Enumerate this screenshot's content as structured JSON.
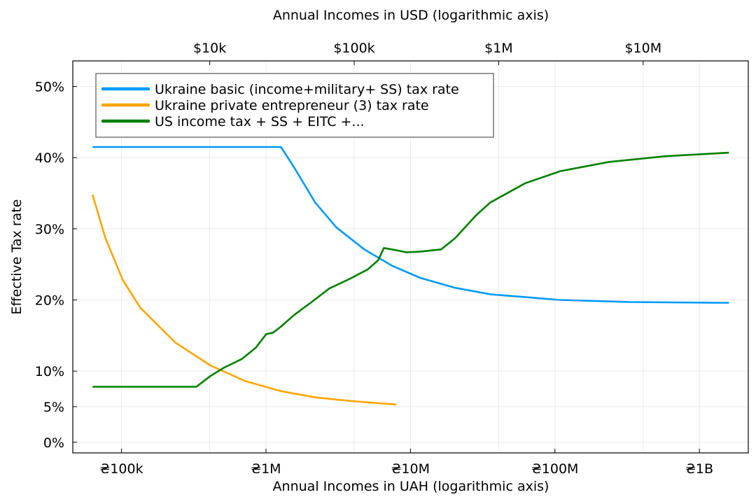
{
  "chart_data": {
    "type": "line",
    "title": "",
    "xlabel": "Annual Incomes in UAH (logarithmic axis)",
    "x2label": "Annual Incomes in USD (logarithmic axis)",
    "ylabel": "Effective Tax rate",
    "xscale": "log",
    "xlim": [
      46000,
      2180000000
    ],
    "ylim": [
      -1.5,
      53.6
    ],
    "grid": true,
    "legend_position": "top-left",
    "x_ticks": [
      {
        "value": 100000,
        "label": "₴100k"
      },
      {
        "value": 1000000,
        "label": "₴1M"
      },
      {
        "value": 10000000,
        "label": "₴10M"
      },
      {
        "value": 100000000,
        "label": "₴100M"
      },
      {
        "value": 1000000000,
        "label": "₴1B"
      }
    ],
    "x2_ticks": [
      {
        "value": 10000,
        "label": "$10k"
      },
      {
        "value": 100000,
        "label": "$100k"
      },
      {
        "value": 1000000,
        "label": "$1M"
      },
      {
        "value": 10000000,
        "label": "$10M"
      }
    ],
    "y_ticks": [
      {
        "value": 0,
        "label": "0%"
      },
      {
        "value": 5,
        "label": "5%"
      },
      {
        "value": 10,
        "label": "10%"
      },
      {
        "value": 20,
        "label": "20%"
      },
      {
        "value": 30,
        "label": "30%"
      },
      {
        "value": 40,
        "label": "40%"
      },
      {
        "value": 50,
        "label": "50%"
      }
    ],
    "series": [
      {
        "name": "Ukraine basic (income+military+ SS) tax rate",
        "color": "#009AFA",
        "x": [
          63000,
          1270000,
          1570000,
          2190000,
          3070000,
          4790000,
          7480000,
          11700000,
          20400000,
          35700000,
          108700000,
          332000000,
          1600000000
        ],
        "y": [
          41.5,
          41.5,
          38.6,
          33.7,
          30.2,
          27.1,
          24.8,
          23.1,
          21.7,
          20.8,
          20.0,
          19.7,
          19.6
        ]
      },
      {
        "name": "Ukraine private entrepreneur (3) tax rate",
        "color": "#FFA500",
        "x": [
          63000,
          77400,
          102000,
          135000,
          236000,
          412000,
          719000,
          1260000,
          2190000,
          3830000,
          8000000
        ],
        "y": [
          34.8,
          28.7,
          22.8,
          18.9,
          14.0,
          10.8,
          8.6,
          7.2,
          6.3,
          5.8,
          5.3
        ]
      },
      {
        "name": "US income tax + SS + EITC +...",
        "color": "#008000",
        "x": [
          63000,
          330000,
          412000,
          515000,
          681000,
          851000,
          1005000,
          1120000,
          1260000,
          1570000,
          2070000,
          2740000,
          3830000,
          5070000,
          5990000,
          6540000,
          7910000,
          9350000,
          11700000,
          16300000,
          20400000,
          28500000,
          35700000,
          62200000,
          109000000,
          237000000,
          579000000,
          1600000000
        ],
        "y": [
          7.8,
          7.8,
          9.3,
          10.5,
          11.7,
          13.3,
          15.2,
          15.4,
          16.2,
          17.9,
          19.7,
          21.6,
          23.0,
          24.3,
          25.6,
          27.3,
          27.0,
          26.7,
          26.8,
          27.1,
          28.7,
          31.9,
          33.7,
          36.4,
          38.1,
          39.4,
          40.2,
          40.7
        ]
      }
    ]
  }
}
